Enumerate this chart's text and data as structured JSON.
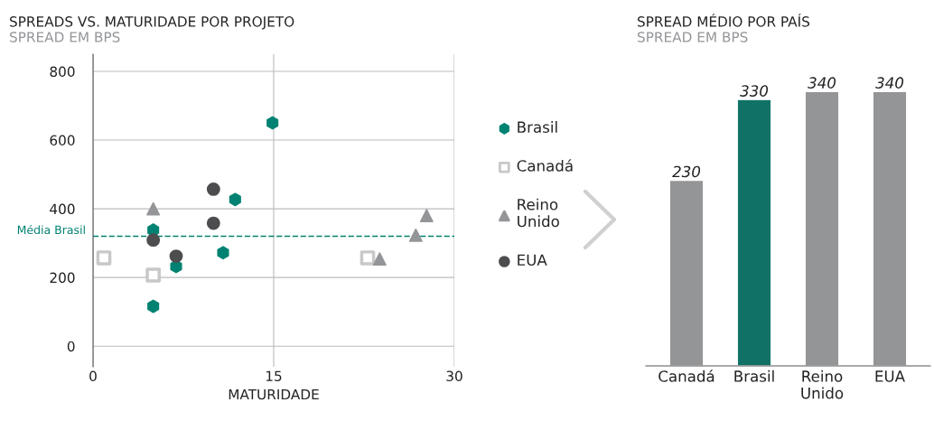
{
  "chart_data": [
    {
      "type": "scatter",
      "title": "SPREADS VS. MATURIDADE POR PROJETO",
      "subtitle": "SPREAD EM BPS",
      "xlabel": "MATURIDADE",
      "xlim": [
        0,
        30
      ],
      "xticks": [
        0,
        15,
        30
      ],
      "ylim": [
        -60,
        850
      ],
      "yticks": [
        0,
        200,
        400,
        600,
        800
      ],
      "grid": true,
      "legend": "right",
      "series": [
        {
          "name": "Brasil",
          "color": "#008272",
          "x": [
            14.9,
            11.8,
            5.0,
            10.8,
            6.9,
            5.0
          ],
          "values": [
            650,
            427,
            338,
            272,
            232,
            116
          ]
        },
        {
          "name": "Canadá",
          "color": "#c8c8c8",
          "marker": "square",
          "x": [
            0.9,
            5.0,
            22.8
          ],
          "values": [
            257,
            207,
            257
          ]
        },
        {
          "name": "Reino Unido",
          "color": "#939598",
          "marker": "triangle",
          "x": [
            5.0,
            23.8,
            26.8,
            27.7
          ],
          "values": [
            400,
            254,
            323,
            380
          ]
        },
        {
          "name": "EUA",
          "color": "#4d4d4f",
          "marker": "circle",
          "x": [
            10.0,
            10.0,
            5.0,
            6.9
          ],
          "values": [
            457,
            358,
            309,
            262
          ]
        }
      ],
      "ref_lines": [
        {
          "axis": "y",
          "value": 320,
          "label": "Média Brasil",
          "color": "#008272",
          "line_style": "dashed"
        }
      ]
    },
    {
      "type": "bar",
      "title": "SPREAD MÉDIO POR PAÍS",
      "subtitle": "SPREAD EM BPS",
      "categories": [
        "Canadá",
        "Brasil",
        "Reino Unido",
        "EUA"
      ],
      "values": [
        230,
        330,
        340,
        340
      ],
      "colors": [
        "#939598",
        "#008272",
        "#939598",
        "#939598"
      ],
      "tick_labels": "x",
      "data_labels": true
    }
  ]
}
